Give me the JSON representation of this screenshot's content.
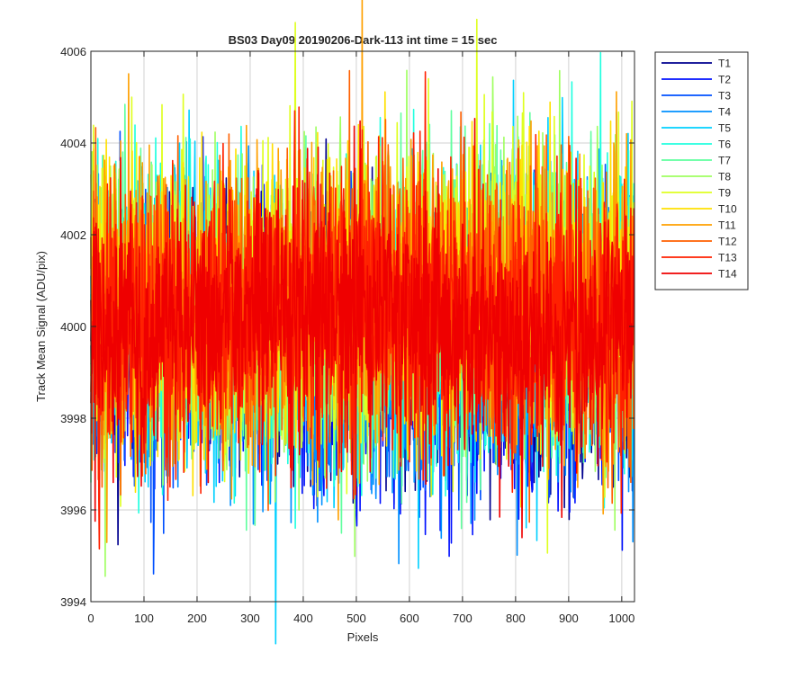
{
  "chart_data": {
    "type": "line",
    "title": "BS03 Day09 20190206-Dark-113 int time = 15 sec",
    "xlabel": "Pixels",
    "ylabel": "Track Mean Signal (ADU/pix)",
    "xlim": [
      0,
      1024
    ],
    "ylim": [
      3994,
      4006
    ],
    "xticks": [
      0,
      100,
      200,
      300,
      400,
      500,
      600,
      700,
      800,
      900,
      1000
    ],
    "yticks": [
      3994,
      3996,
      3998,
      4000,
      4002,
      4004,
      4006
    ],
    "grid": true,
    "legend_position": "outside-top-right",
    "series": [
      {
        "name": "T1",
        "color": "#00008f",
        "mean": 3999.3,
        "amplitude": 1.3
      },
      {
        "name": "T2",
        "color": "#0010ff",
        "mean": 3999.4,
        "amplitude": 1.4
      },
      {
        "name": "T3",
        "color": "#0050ff",
        "mean": 3999.6,
        "amplitude": 1.4
      },
      {
        "name": "T4",
        "color": "#0090ff",
        "mean": 3999.8,
        "amplitude": 1.5
      },
      {
        "name": "T5",
        "color": "#00d0ff",
        "mean": 4000.1,
        "amplitude": 1.6
      },
      {
        "name": "T6",
        "color": "#20ffdf",
        "mean": 4000.3,
        "amplitude": 1.6
      },
      {
        "name": "T7",
        "color": "#60ff9f",
        "mean": 4000.4,
        "amplitude": 1.6
      },
      {
        "name": "T8",
        "color": "#9fff60",
        "mean": 4000.5,
        "amplitude": 1.6
      },
      {
        "name": "T9",
        "color": "#dfff20",
        "mean": 4000.6,
        "amplitude": 1.6
      },
      {
        "name": "T10",
        "color": "#ffe000",
        "mean": 4000.6,
        "amplitude": 1.6
      },
      {
        "name": "T11",
        "color": "#ffa000",
        "mean": 4000.5,
        "amplitude": 1.6
      },
      {
        "name": "T12",
        "color": "#ff6000",
        "mean": 4000.4,
        "amplitude": 1.6
      },
      {
        "name": "T13",
        "color": "#ff2000",
        "mean": 4000.3,
        "amplitude": 1.5
      },
      {
        "name": "T14",
        "color": "#ef0000",
        "mean": 4000.1,
        "amplitude": 1.3
      }
    ]
  }
}
